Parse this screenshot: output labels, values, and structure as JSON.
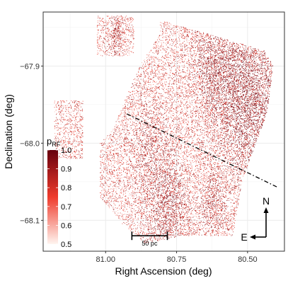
{
  "chart_data": {
    "type": "scatter",
    "title": "",
    "xlabel": "Right Ascension (deg)",
    "ylabel": "Declination (deg)",
    "x_reversed": true,
    "xlim": [
      81.22,
      80.37
    ],
    "ylim": [
      -68.14,
      -67.83
    ],
    "x_ticks": [
      81.0,
      80.75,
      80.5
    ],
    "x_tick_labels": [
      "81.00",
      "80.75",
      "80.50"
    ],
    "y_ticks": [
      -67.9,
      -68.0,
      -68.1
    ],
    "y_tick_labels": [
      "−67.9",
      "−68.0",
      "−68.1"
    ],
    "grid": true,
    "legend": {
      "title_main": "p",
      "title_sub": "RF",
      "placement": "left",
      "range": [
        0.5,
        1.0
      ],
      "tick_labels": [
        "1.0",
        "0.9",
        "0.8",
        "0.7",
        "0.6",
        "0.5"
      ],
      "color_low": "#fff5f0",
      "color_mid": "#ef3b2c",
      "color_high": "#67000d"
    },
    "annotations": {
      "scale_bar_label": "50 pc",
      "scale_bar_length_deg": 0.125,
      "scale_bar_center": [
        80.845,
        -68.12
      ],
      "compass_north": "N",
      "compass_east": "E",
      "dashed_line": {
        "x": [
          80.925,
          80.395
        ],
        "y": [
          -67.962,
          -68.057
        ]
      }
    },
    "regions": [
      {
        "name": "upper-left-field",
        "ra_min": 80.9,
        "ra_max": 81.03,
        "dec_min": -67.887,
        "dec_max": -67.835
      },
      {
        "name": "left-field",
        "ra_min": 81.08,
        "ra_max": 81.18,
        "dec_min": -68.02,
        "dec_max": -67.945
      },
      {
        "name": "main-field",
        "polygon": [
          [
            80.81,
            -67.84
          ],
          [
            80.44,
            -67.88
          ],
          [
            80.41,
            -67.9
          ],
          [
            80.43,
            -67.96
          ],
          [
            80.52,
            -68.05
          ],
          [
            80.55,
            -68.12
          ],
          [
            80.73,
            -68.12
          ],
          [
            80.86,
            -68.13
          ],
          [
            80.94,
            -68.105
          ],
          [
            81.02,
            -68.07
          ],
          [
            81.02,
            -68.0
          ],
          [
            80.98,
            -67.985
          ],
          [
            80.88,
            -67.9
          ],
          [
            80.81,
            -67.86
          ]
        ]
      }
    ],
    "density_clusters": [
      {
        "ra": 80.45,
        "dec": -67.96,
        "weight": 1.0,
        "spread": 0.06
      },
      {
        "ra": 80.55,
        "dec": -67.93,
        "weight": 0.8,
        "spread": 0.05
      },
      {
        "ra": 80.63,
        "dec": -67.9,
        "weight": 0.6,
        "spread": 0.035
      },
      {
        "ra": 80.78,
        "dec": -68.08,
        "weight": 0.7,
        "spread": 0.04
      },
      {
        "ra": 80.62,
        "dec": -68.08,
        "weight": 0.4,
        "spread": 0.03
      },
      {
        "ra": 80.96,
        "dec": -67.858,
        "weight": 0.5,
        "spread": 0.012
      },
      {
        "ra": 80.85,
        "dec": -68.01,
        "weight": 0.35,
        "spread": 0.04
      }
    ]
  }
}
